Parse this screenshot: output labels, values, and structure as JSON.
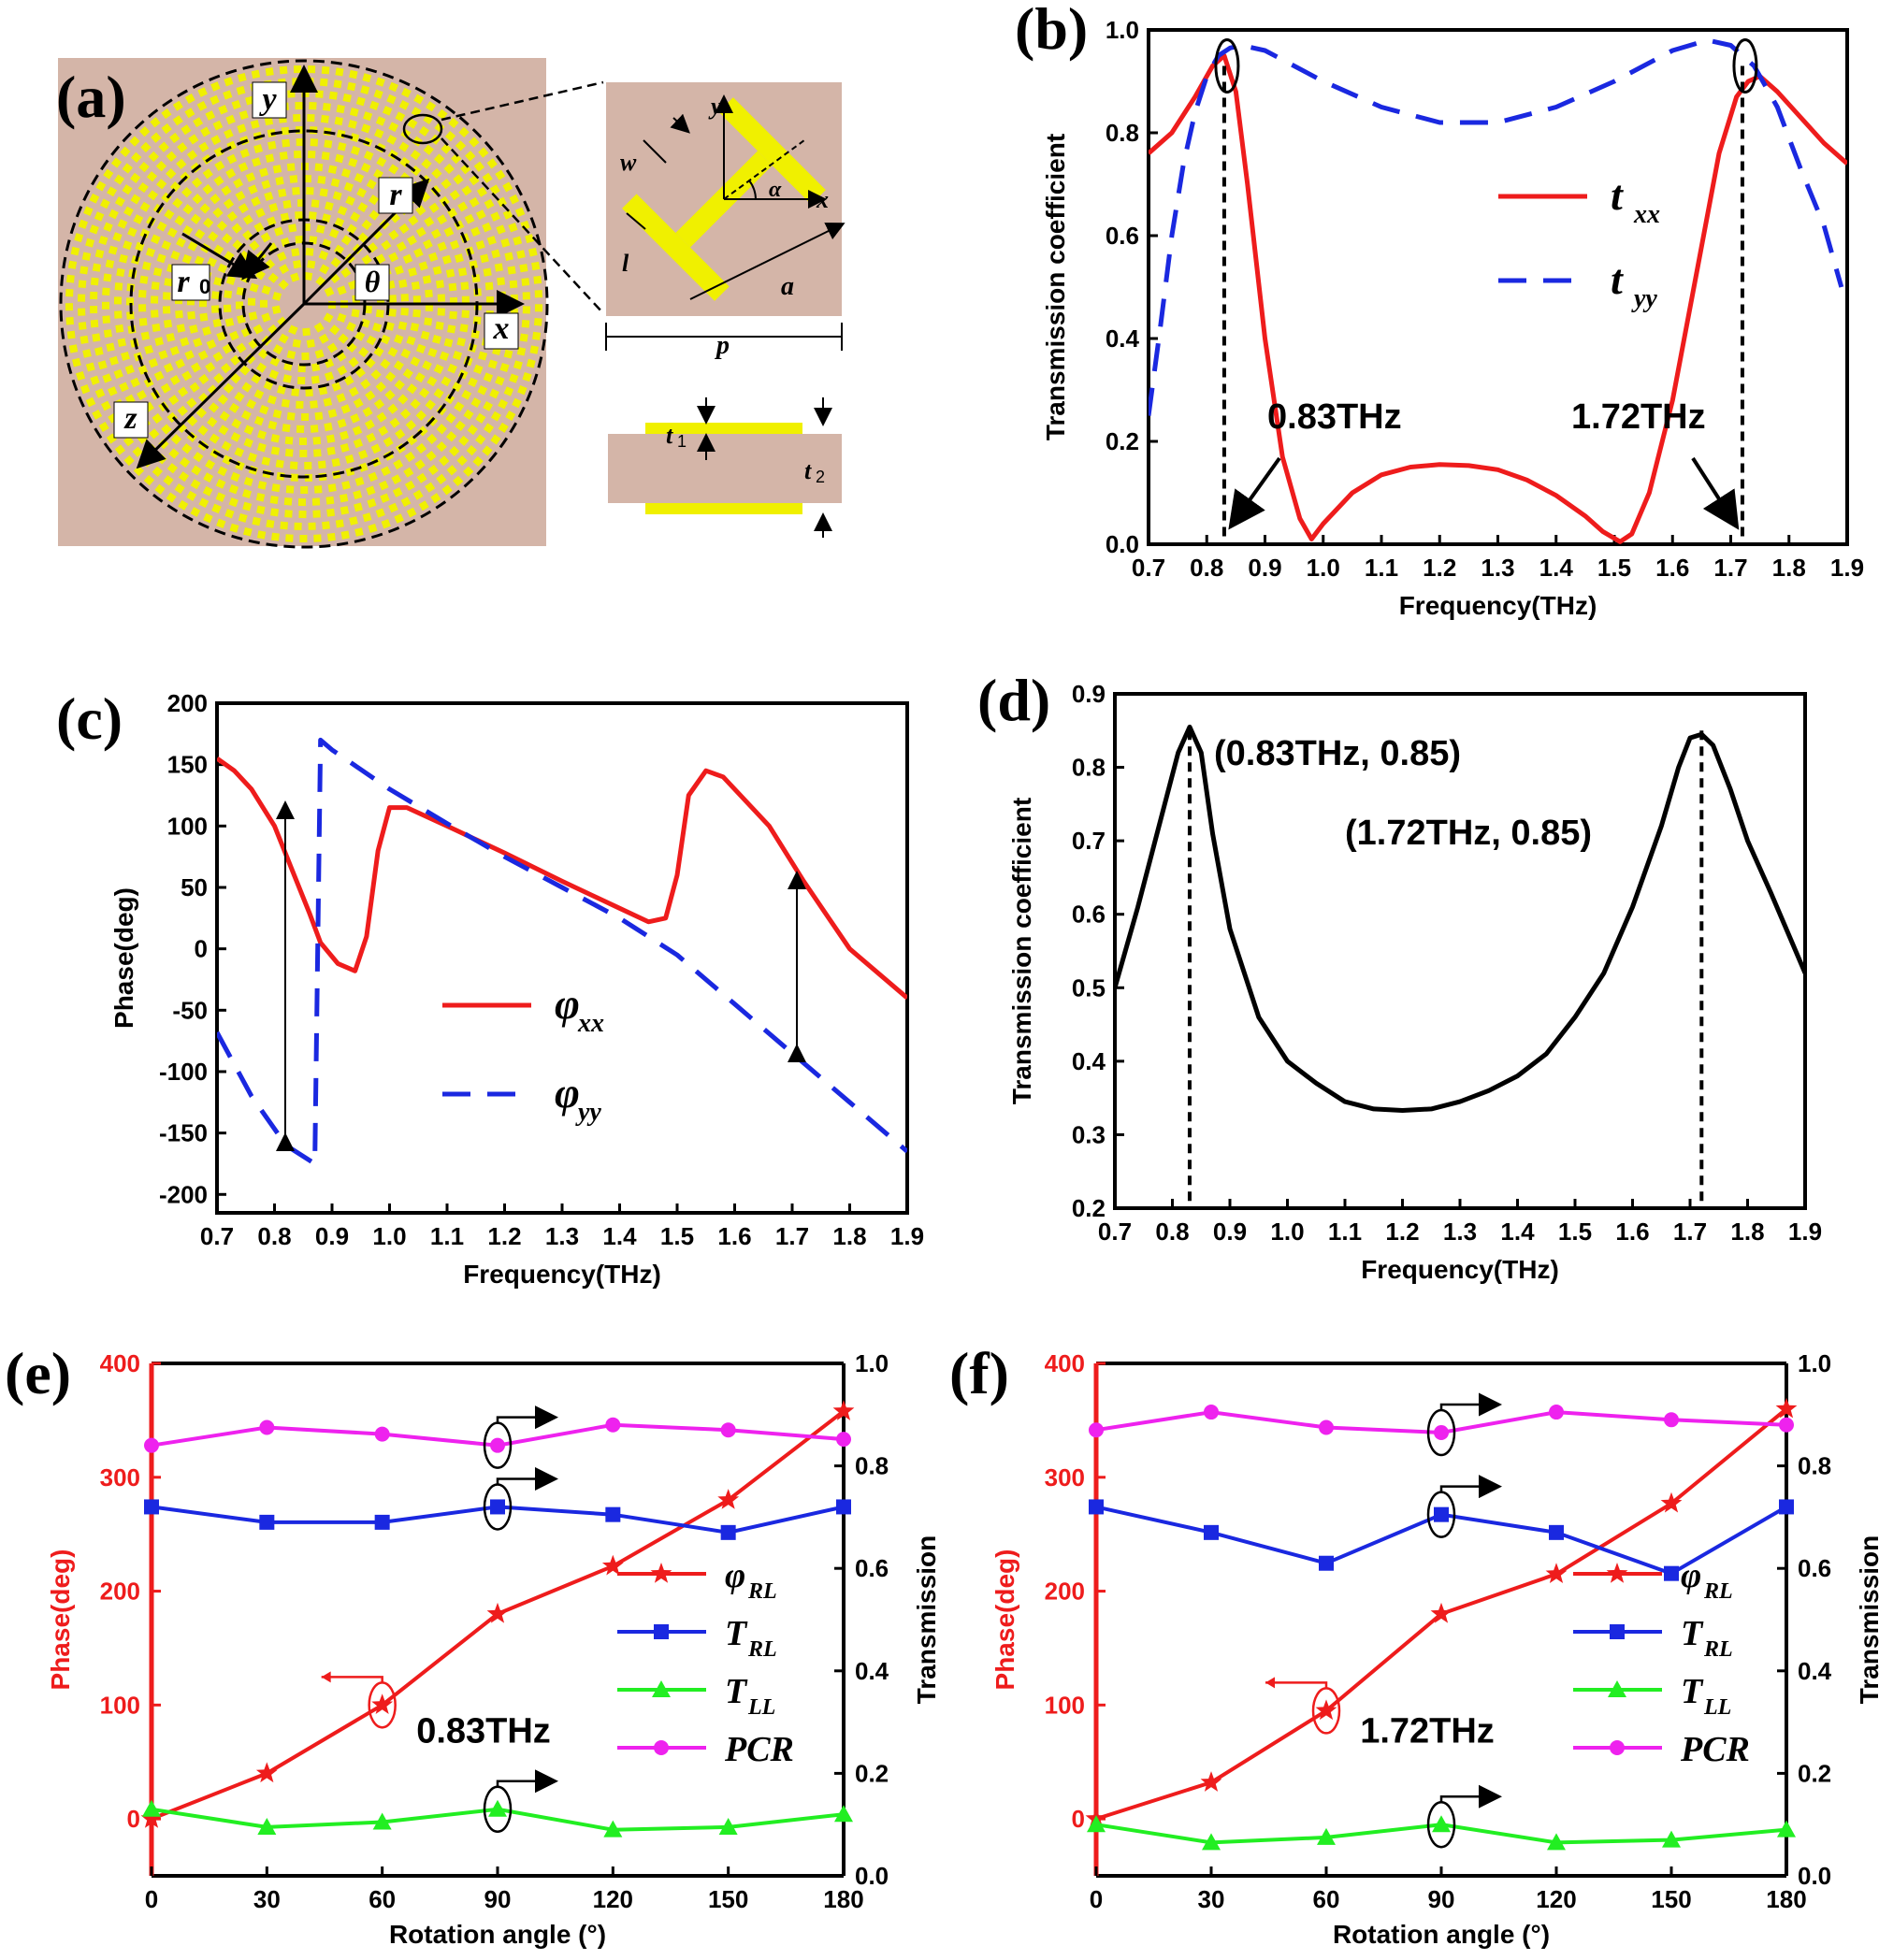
{
  "colors": {
    "red": "#ee1c1c",
    "blue": "#1a28e0",
    "green": "#22ee22",
    "magenta": "#ee22ee",
    "black": "#000000",
    "tan": "#d4b5a8",
    "yellow": "#f0f000"
  },
  "panels": [
    "(a)",
    "(b)",
    "(c)",
    "(d)",
    "(e)",
    "(f)"
  ],
  "panel_a": {
    "labels": {
      "y": "y",
      "x": "x",
      "z": "z",
      "r": "r",
      "r0": "r",
      "r0_sub": "0",
      "theta": "θ",
      "w": "w",
      "l": "l",
      "a": "a",
      "p": "p",
      "alpha": "α",
      "uy": "y",
      "ux": "x",
      "t1": "t",
      "t1_sub": "1",
      "t2": "t",
      "t2_sub": "2"
    }
  },
  "chart_data": [
    {
      "id": "b",
      "type": "line",
      "xlabel": "Frequency(THz)",
      "ylabel": "Transmission coefficient",
      "xlim": [
        0.7,
        1.9
      ],
      "ylim": [
        0.0,
        1.0
      ],
      "xticks": [
        "0.7",
        "0.8",
        "0.9",
        "1.0",
        "1.1",
        "1.2",
        "1.3",
        "1.4",
        "1.5",
        "1.6",
        "1.7",
        "1.8",
        "1.9"
      ],
      "yticks": [
        "0.0",
        "0.2",
        "0.4",
        "0.6",
        "0.8",
        "1.0"
      ],
      "series": [
        {
          "name": "t",
          "sub": "xx",
          "color": "#ee1c1c",
          "dash": false,
          "x": [
            0.7,
            0.74,
            0.78,
            0.81,
            0.83,
            0.85,
            0.87,
            0.9,
            0.93,
            0.96,
            0.98,
            1.0,
            1.05,
            1.1,
            1.15,
            1.2,
            1.25,
            1.3,
            1.35,
            1.4,
            1.45,
            1.48,
            1.51,
            1.53,
            1.56,
            1.6,
            1.64,
            1.68,
            1.71,
            1.73,
            1.75,
            1.78,
            1.82,
            1.86,
            1.9
          ],
          "y": [
            0.76,
            0.8,
            0.87,
            0.93,
            0.95,
            0.88,
            0.7,
            0.4,
            0.17,
            0.05,
            0.01,
            0.04,
            0.1,
            0.135,
            0.15,
            0.155,
            0.153,
            0.145,
            0.125,
            0.095,
            0.055,
            0.025,
            0.005,
            0.02,
            0.1,
            0.28,
            0.52,
            0.76,
            0.87,
            0.9,
            0.91,
            0.88,
            0.83,
            0.78,
            0.74
          ]
        },
        {
          "name": "t",
          "sub": "yy",
          "color": "#1a28e0",
          "dash": true,
          "x": [
            0.7,
            0.72,
            0.74,
            0.76,
            0.78,
            0.8,
            0.82,
            0.84,
            0.86,
            0.9,
            1.0,
            1.1,
            1.2,
            1.3,
            1.4,
            1.5,
            1.6,
            1.66,
            1.7,
            1.74,
            1.78,
            1.82,
            1.86,
            1.89
          ],
          "y": [
            0.25,
            0.42,
            0.6,
            0.74,
            0.84,
            0.91,
            0.95,
            0.965,
            0.97,
            0.96,
            0.9,
            0.85,
            0.82,
            0.82,
            0.85,
            0.9,
            0.96,
            0.98,
            0.97,
            0.93,
            0.85,
            0.73,
            0.62,
            0.5
          ]
        }
      ],
      "annotations": [
        {
          "text": "0.83THz",
          "x": 0.83
        },
        {
          "text": "1.72THz",
          "x": 1.72
        }
      ]
    },
    {
      "id": "c",
      "type": "line",
      "xlabel": "Frequency(THz)",
      "ylabel": "Phase(deg)",
      "xlim": [
        0.7,
        1.9
      ],
      "ylim": [
        -215,
        200
      ],
      "xticks": [
        "0.7",
        "0.8",
        "0.9",
        "1.0",
        "1.1",
        "1.2",
        "1.3",
        "1.4",
        "1.5",
        "1.6",
        "1.7",
        "1.8",
        "1.9"
      ],
      "yticks": [
        "200",
        "150",
        "100",
        "50",
        "0",
        "-50",
        "-100",
        "-150",
        "-200"
      ],
      "series": [
        {
          "name": "φ",
          "sub": "xx",
          "color": "#ee1c1c",
          "dash": false,
          "x": [
            0.7,
            0.73,
            0.76,
            0.8,
            0.83,
            0.86,
            0.88,
            0.91,
            0.94,
            0.96,
            0.98,
            1.0,
            1.03,
            1.1,
            1.2,
            1.3,
            1.4,
            1.45,
            1.48,
            1.5,
            1.52,
            1.55,
            1.58,
            1.62,
            1.66,
            1.72,
            1.8,
            1.9
          ],
          "y": [
            155,
            145,
            130,
            100,
            65,
            30,
            5,
            -12,
            -18,
            10,
            80,
            115,
            115,
            100,
            78,
            55,
            33,
            22,
            25,
            60,
            125,
            145,
            140,
            120,
            100,
            55,
            0,
            -40
          ]
        },
        {
          "name": "φ",
          "sub": "yy",
          "color": "#1a28e0",
          "dash": true,
          "x": [
            0.7,
            0.76,
            0.82,
            0.87,
            0.87,
            0.88,
            0.9,
            1.0,
            1.1,
            1.2,
            1.3,
            1.4,
            1.5,
            1.6,
            1.7,
            1.8,
            1.9
          ],
          "y": [
            -68,
            -120,
            -160,
            -175,
            -175,
            170,
            162,
            130,
            102,
            75,
            50,
            25,
            -5,
            -45,
            -85,
            -125,
            -165
          ]
        }
      ]
    },
    {
      "id": "d",
      "type": "line",
      "xlabel": "Frequency(THz)",
      "ylabel": "Transmission coefficient",
      "xlim": [
        0.7,
        1.9
      ],
      "ylim": [
        0.2,
        0.9
      ],
      "xticks": [
        "0.7",
        "0.8",
        "0.9",
        "1.0",
        "1.1",
        "1.2",
        "1.3",
        "1.4",
        "1.5",
        "1.6",
        "1.7",
        "1.8",
        "1.9"
      ],
      "yticks": [
        "0.2",
        "0.3",
        "0.4",
        "0.5",
        "0.6",
        "0.7",
        "0.8",
        "0.9"
      ],
      "series": [
        {
          "name": "",
          "color": "#000000",
          "dash": false,
          "x": [
            0.7,
            0.74,
            0.78,
            0.81,
            0.83,
            0.85,
            0.87,
            0.9,
            0.95,
            1.0,
            1.05,
            1.1,
            1.15,
            1.2,
            1.25,
            1.3,
            1.35,
            1.4,
            1.45,
            1.5,
            1.55,
            1.6,
            1.65,
            1.68,
            1.7,
            1.72,
            1.74,
            1.77,
            1.8,
            1.84,
            1.9
          ],
          "y": [
            0.5,
            0.61,
            0.73,
            0.82,
            0.855,
            0.82,
            0.71,
            0.58,
            0.46,
            0.4,
            0.37,
            0.345,
            0.335,
            0.333,
            0.335,
            0.345,
            0.36,
            0.38,
            0.41,
            0.46,
            0.52,
            0.61,
            0.72,
            0.8,
            0.84,
            0.845,
            0.83,
            0.77,
            0.7,
            0.63,
            0.52
          ]
        }
      ],
      "annotations": [
        {
          "text": "(0.83THz, 0.85)",
          "x": 0.83,
          "y": 0.85
        },
        {
          "text": "(1.72THz, 0.85)",
          "x": 1.72,
          "y": 0.85
        }
      ]
    },
    {
      "id": "e",
      "type": "line",
      "xlabel": "Rotation angle (°)",
      "ylabel": "Phase(deg)",
      "ylabel2": "Transmission",
      "annotation": "0.83THz",
      "xlim": [
        0,
        180
      ],
      "ylim": [
        -50,
        400
      ],
      "ylim2": [
        0.0,
        1.0
      ],
      "xticks": [
        "0",
        "30",
        "60",
        "90",
        "120",
        "150",
        "180"
      ],
      "yticks": [
        "0",
        "100",
        "200",
        "300",
        "400"
      ],
      "yticks2": [
        "0.0",
        "0.2",
        "0.4",
        "0.6",
        "0.8",
        "1.0"
      ],
      "x": [
        0,
        30,
        60,
        90,
        120,
        150,
        180
      ],
      "series": [
        {
          "name": "φ",
          "sub": "RL",
          "axis": "left",
          "color": "#ee1c1c",
          "marker": "star",
          "values": [
            0,
            40,
            100,
            180,
            222,
            280,
            358
          ]
        },
        {
          "name": "T",
          "sub": "RL",
          "axis": "right",
          "color": "#1a28e0",
          "marker": "square",
          "values": [
            0.72,
            0.69,
            0.69,
            0.72,
            0.705,
            0.67,
            0.72
          ]
        },
        {
          "name": "T",
          "sub": "LL",
          "axis": "right",
          "color": "#22ee22",
          "marker": "triangle",
          "values": [
            0.13,
            0.095,
            0.105,
            0.13,
            0.09,
            0.095,
            0.12
          ]
        },
        {
          "name": "PCR",
          "sub": "",
          "axis": "right",
          "color": "#ee22ee",
          "marker": "circle",
          "values": [
            0.84,
            0.875,
            0.862,
            0.84,
            0.88,
            0.87,
            0.852
          ]
        }
      ]
    },
    {
      "id": "f",
      "type": "line",
      "xlabel": "Rotation angle (°)",
      "ylabel": "Phase(deg)",
      "ylabel2": "Transmission",
      "annotation": "1.72THz",
      "xlim": [
        0,
        180
      ],
      "ylim": [
        -50,
        400
      ],
      "ylim2": [
        0.0,
        1.0
      ],
      "xticks": [
        "0",
        "30",
        "60",
        "90",
        "120",
        "150",
        "180"
      ],
      "yticks": [
        "0",
        "100",
        "200",
        "300",
        "400"
      ],
      "yticks2": [
        "0.0",
        "0.2",
        "0.4",
        "0.6",
        "0.8",
        "1.0"
      ],
      "x": [
        0,
        30,
        60,
        90,
        120,
        150,
        180
      ],
      "series": [
        {
          "name": "φ",
          "sub": "RL",
          "axis": "left",
          "color": "#ee1c1c",
          "marker": "star",
          "values": [
            0,
            32,
            95,
            180,
            215,
            277,
            360
          ]
        },
        {
          "name": "T",
          "sub": "RL",
          "axis": "right",
          "color": "#1a28e0",
          "marker": "square",
          "values": [
            0.72,
            0.67,
            0.61,
            0.705,
            0.67,
            0.59,
            0.72
          ]
        },
        {
          "name": "T",
          "sub": "LL",
          "axis": "right",
          "color": "#22ee22",
          "marker": "triangle",
          "values": [
            0.1,
            0.065,
            0.075,
            0.1,
            0.065,
            0.07,
            0.09
          ]
        },
        {
          "name": "PCR",
          "sub": "",
          "axis": "right",
          "color": "#ee22ee",
          "marker": "circle",
          "values": [
            0.87,
            0.905,
            0.875,
            0.865,
            0.905,
            0.89,
            0.88
          ]
        }
      ]
    }
  ]
}
